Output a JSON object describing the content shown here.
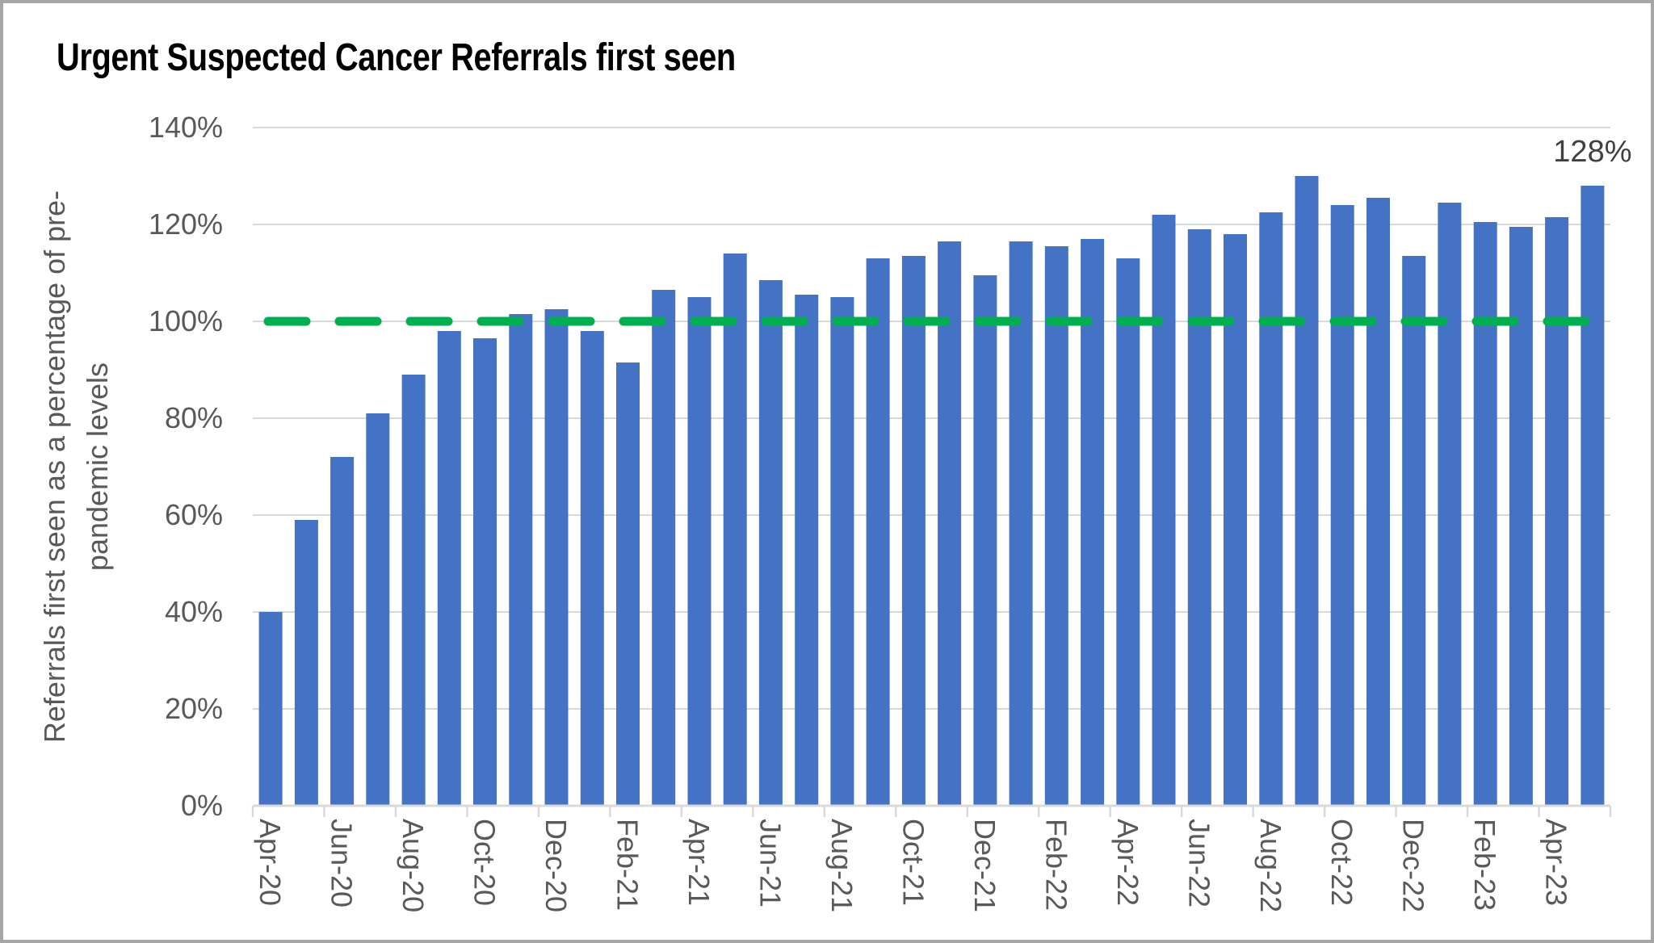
{
  "window": {
    "background_color": "#ffffff",
    "border_color": "#a6a6a6"
  },
  "chart": {
    "title": "Urgent Suspected Cancer Referrals first seen",
    "y_axis_title_line1": "Referrals first seen as a percentage of pre-",
    "y_axis_title_line2": "pandemic levels"
  },
  "chart_data": {
    "type": "bar",
    "title": "Urgent Suspected Cancer Referrals first seen",
    "ylabel": "Referrals first seen as a percentage of pre-pandemic levels",
    "xlabel": "",
    "categories": [
      "Apr-20",
      "May-20",
      "Jun-20",
      "Jul-20",
      "Aug-20",
      "Sep-20",
      "Oct-20",
      "Nov-20",
      "Dec-20",
      "Jan-21",
      "Feb-21",
      "Mar-21",
      "Apr-21",
      "May-21",
      "Jun-21",
      "Jul-21",
      "Aug-21",
      "Sep-21",
      "Oct-21",
      "Nov-21",
      "Dec-21",
      "Jan-22",
      "Feb-22",
      "Mar-22",
      "Apr-22",
      "May-22",
      "Jun-22",
      "Jul-22",
      "Aug-22",
      "Sep-22",
      "Oct-22",
      "Nov-22",
      "Dec-22",
      "Jan-23",
      "Feb-23",
      "Mar-23",
      "Apr-23",
      "May-23"
    ],
    "values": [
      40,
      59,
      72,
      81,
      89,
      98,
      96.5,
      101.5,
      102.5,
      98,
      91.5,
      106.5,
      105,
      114,
      108.5,
      105.5,
      105,
      113,
      113.5,
      116.5,
      109.5,
      116.5,
      115.5,
      117,
      113,
      122,
      119,
      118,
      122.5,
      130,
      124,
      125.5,
      113.5,
      124.5,
      120.5,
      119.5,
      121.5,
      128
    ],
    "shown_x_tick_labels": [
      "Apr-20",
      "Jun-20",
      "Aug-20",
      "Oct-20",
      "Dec-20",
      "Feb-21",
      "Apr-21",
      "Jun-21",
      "Aug-21",
      "Oct-21",
      "Dec-21",
      "Feb-22",
      "Apr-22",
      "Jun-22",
      "Aug-22",
      "Oct-22",
      "Dec-22",
      "Feb-23",
      "Apr-23"
    ],
    "x_label_every_n_categories": 2,
    "y_ticks": [
      {
        "label": "140%",
        "value": 140
      },
      {
        "label": "120%",
        "value": 120
      },
      {
        "label": "100%",
        "value": 100
      },
      {
        "label": "80%",
        "value": 80
      },
      {
        "label": "60%",
        "value": 60
      },
      {
        "label": "40%",
        "value": 40
      },
      {
        "label": "20%",
        "value": 20
      },
      {
        "label": "0%",
        "value": 0
      }
    ],
    "ylim": [
      0,
      140
    ],
    "grid": "horizontal",
    "legend": "none",
    "bar_color": "#4472C4",
    "gridline_color": "#D9D9D9",
    "axis_line_color": "#D9D9D9",
    "axis_text_color": "#595959",
    "data_label_color": "#404040",
    "reference_line": {
      "value": 100,
      "color": "#00B050",
      "style": "dashed"
    },
    "data_labels": [
      {
        "category": "May-23",
        "text": "128%",
        "value": 128
      }
    ]
  }
}
